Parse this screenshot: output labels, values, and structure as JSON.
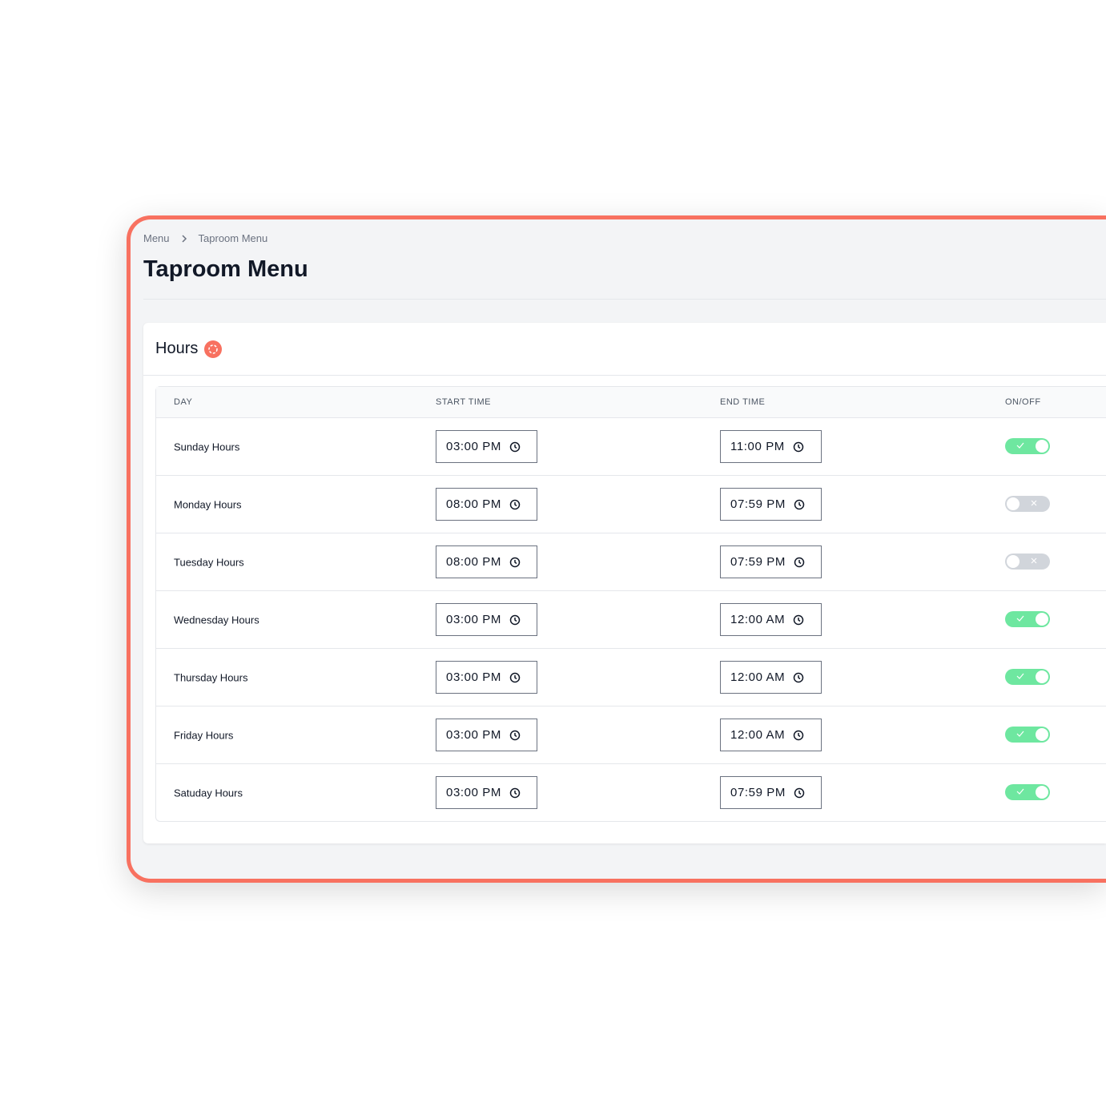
{
  "breadcrumb": [
    "Menu",
    "Taproom Menu"
  ],
  "title": "Taproom Menu",
  "section": {
    "title": "Hours"
  },
  "table": {
    "headers": [
      "DAY",
      "START TIME",
      "END TIME",
      "ON/OFF"
    ],
    "rows": [
      {
        "day": "Sunday Hours",
        "start": "03:00 PM",
        "end": "11:00 PM",
        "on": true
      },
      {
        "day": "Monday Hours",
        "start": "08:00 PM",
        "end": "07:59 PM",
        "on": false
      },
      {
        "day": "Tuesday Hours",
        "start": "08:00 PM",
        "end": "07:59 PM",
        "on": false
      },
      {
        "day": "Wednesday Hours",
        "start": "03:00 PM",
        "end": "12:00 AM",
        "on": true
      },
      {
        "day": "Thursday Hours",
        "start": "03:00 PM",
        "end": "12:00 AM",
        "on": true
      },
      {
        "day": "Friday Hours",
        "start": "03:00 PM",
        "end": "12:00 AM",
        "on": true
      },
      {
        "day": "Satuday Hours",
        "start": "03:00 PM",
        "end": "07:59 PM",
        "on": true
      }
    ]
  }
}
